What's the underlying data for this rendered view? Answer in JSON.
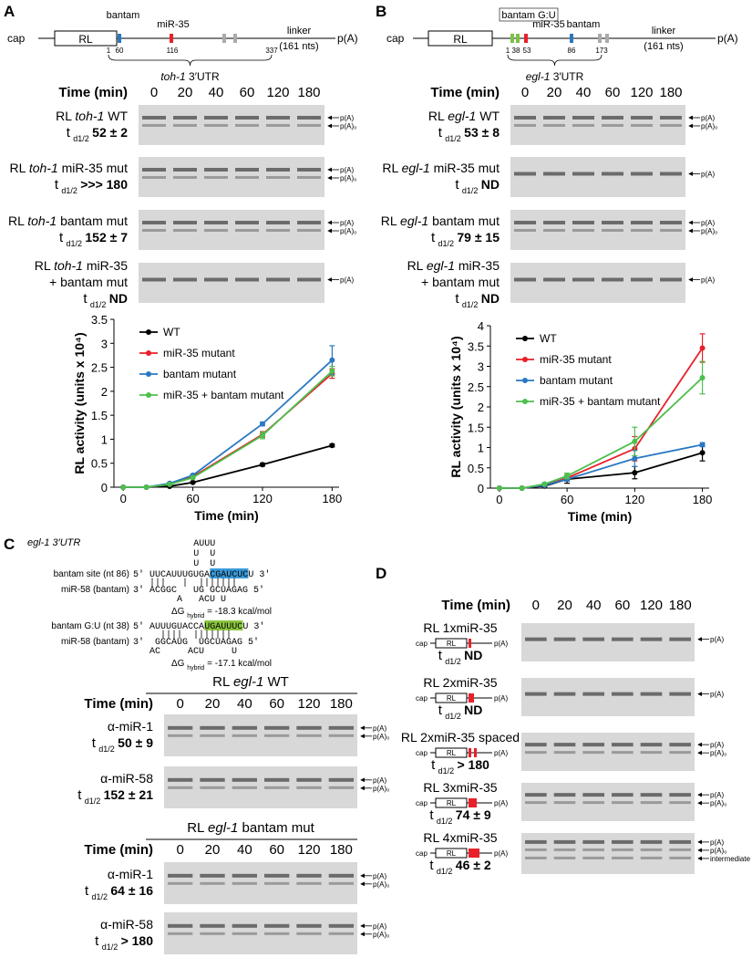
{
  "t_symbol": "t",
  "t_sub": "d1/2",
  "panels": [
    {
      "letter": "A",
      "construct": {
        "cap": "cap",
        "rl": "RL",
        "sites": [
          "bantam",
          "miR-35"
        ],
        "positions": [
          "1",
          "60",
          "116",
          "337"
        ],
        "utr": [
          "toh-1",
          "3′UTR"
        ],
        "linker": "linker",
        "linker_len": "(161 nts)",
        "polyA": "p(A)"
      },
      "time_label": "Time (min)",
      "times": [
        "0",
        "20",
        "40",
        "60",
        "120",
        "180"
      ],
      "rows": [
        {
          "label": [
            [
              "RL",
              "toh-1",
              "WT"
            ]
          ],
          "halflife": "52 ± 2",
          "arrows": [
            "p(A)",
            "p(A)₀"
          ]
        },
        {
          "label": [
            [
              "RL",
              "toh-1",
              "miR-35 mut"
            ]
          ],
          "halflife": ">>> 180",
          "arrows": [
            "p(A)",
            "p(A)₀"
          ]
        },
        {
          "label": [
            [
              "RL",
              "toh-1",
              "bantam mut"
            ]
          ],
          "halflife": "152 ± 7",
          "arrows": [
            "p(A)",
            "p(A)₀"
          ]
        },
        {
          "label": [
            [
              "RL",
              "toh-1",
              "miR-35"
            ],
            [
              "+ bantam mut"
            ]
          ],
          "halflife": "ND",
          "arrows": [
            "p(A)"
          ]
        }
      ]
    },
    {
      "letter": "B",
      "construct": {
        "cap": "cap",
        "rl": "RL",
        "sites": [
          "bantam G:U",
          "miR-35",
          "bantam"
        ],
        "positions": [
          "1",
          "38",
          "53",
          "86",
          "173"
        ],
        "utr": [
          "egl-1",
          "3′UTR"
        ],
        "linker": "linker",
        "linker_len": "(161 nts)",
        "polyA": "p(A)"
      },
      "time_label": "Time (min)",
      "times": [
        "0",
        "20",
        "40",
        "60",
        "120",
        "180"
      ],
      "rows": [
        {
          "label": [
            [
              "RL",
              "egl-1",
              "WT"
            ]
          ],
          "halflife": "53 ± 8",
          "arrows": [
            "p(A)",
            "p(A)₀"
          ]
        },
        {
          "label": [
            [
              "RL",
              "egl-1",
              "miR-35 mut"
            ]
          ],
          "halflife": "ND",
          "arrows": [
            "p(A)"
          ]
        },
        {
          "label": [
            [
              "RL",
              "egl-1",
              "bantam mut"
            ]
          ],
          "halflife": "79 ± 15",
          "arrows": [
            "p(A)",
            "p(A)₀"
          ]
        },
        {
          "label": [
            [
              "RL",
              "egl-1",
              "miR-35"
            ],
            [
              "+ bantam mut"
            ]
          ],
          "halflife": "ND",
          "arrows": [
            "p(A)"
          ]
        }
      ]
    },
    {
      "letter": "C",
      "utr": [
        "egl-1",
        "3′UTR"
      ],
      "sites": [
        {
          "loop": [
            "AUUU",
            "U  U",
            "U  U"
          ],
          "label": "bantam site (nt 86)",
          "target": [
            "5′ UUCAUUUGUGA",
            "CGAUCUC",
            "U 3′"
          ],
          "pairs": "   |||   |  |||||||",
          "mir_label": "miR-58 (bantam)",
          "mir": "3′ ACGGC   UG GCUAGAG 5′",
          "bulge": "        A   ACU U",
          "dg": [
            "ΔG",
            "hybrid",
            "= -18.3 kcal/mol"
          ]
        },
        {
          "loop": [],
          "label": "bantam G:U (nt 38)",
          "target": [
            "5′ AUUUGUACCA",
            "UGAUUUC",
            "U 3′"
          ],
          "pairs": "     ||||  |||||||",
          "mir_label": "miR-58 (bantam)",
          "mir": "3′  GGCAUG  UGCUAGAG 5′",
          "bulge": "   AC     ACU     U",
          "dg": [
            "ΔG",
            "hybrid",
            "= -17.1 kcal/mol"
          ]
        }
      ],
      "groups": [
        {
          "title": [
            "RL",
            "egl-1",
            "WT"
          ],
          "time_label": "Time (min)",
          "times": [
            "0",
            "20",
            "40",
            "60",
            "120",
            "180"
          ],
          "rows": [
            {
              "label": [
                [
                  "α-miR-1"
                ]
              ],
              "halflife": "50 ± 9",
              "arrows": [
                "p(A)",
                "p(A)₀"
              ]
            },
            {
              "label": [
                [
                  "α-miR-58"
                ]
              ],
              "halflife": "152 ± 21",
              "arrows": [
                "p(A)",
                "p(A)₀"
              ]
            }
          ]
        },
        {
          "title": [
            "RL",
            "egl-1",
            "bantam mut"
          ],
          "time_label": "Time (min)",
          "times": [
            "0",
            "20",
            "40",
            "60",
            "120",
            "180"
          ],
          "rows": [
            {
              "label": [
                [
                  "α-miR-1"
                ]
              ],
              "halflife": "64 ± 16",
              "arrows": [
                "p(A)",
                "p(A)₀"
              ]
            },
            {
              "label": [
                [
                  "α-miR-58"
                ]
              ],
              "halflife": "> 180",
              "arrows": [
                "p(A)",
                "p(A)₀"
              ]
            }
          ]
        }
      ]
    },
    {
      "letter": "D",
      "time_label": "Time (min)",
      "times": [
        "0",
        "20",
        "40",
        "60",
        "120",
        "180"
      ],
      "construct": {
        "cap": "cap",
        "rl": "RL",
        "polyA": "p(A)"
      },
      "rows": [
        {
          "label": [
            [
              "RL 1xmiR-35"
            ]
          ],
          "halflife": "ND",
          "arrows": [
            "p(A)"
          ]
        },
        {
          "label": [
            [
              "RL 2xmiR-35"
            ]
          ],
          "halflife": "ND",
          "arrows": [
            "p(A)"
          ]
        },
        {
          "label": [
            [
              "RL 2xmiR-35 spaced"
            ]
          ],
          "halflife": "> 180",
          "arrows": [
            "p(A)",
            "p(A)₀"
          ]
        },
        {
          "label": [
            [
              "RL 3xmiR-35"
            ]
          ],
          "halflife": "74 ± 9",
          "arrows": [
            "p(A)",
            "p(A)₀"
          ]
        },
        {
          "label": [
            [
              "RL 4xmiR-35"
            ]
          ],
          "halflife": "46 ± 2",
          "arrows": [
            "p(A)",
            "p(A)₀",
            "intermediate"
          ]
        }
      ]
    }
  ],
  "chart_data": [
    {
      "type": "line",
      "xlabel": "Time (min)",
      "ylabel": "RL activity (units x 10⁴)",
      "x": [
        0,
        20,
        40,
        60,
        120,
        180
      ],
      "xlim": [
        -8,
        186
      ],
      "xticks": [
        0,
        60,
        120,
        180
      ],
      "ylim": [
        0,
        3.5
      ],
      "yticks": [
        0,
        0.5,
        1,
        1.5,
        2,
        2.5,
        3,
        3.5
      ],
      "legend": "upper left",
      "series": [
        {
          "name": "WT",
          "color": "#000000",
          "values": [
            0,
            0,
            0.02,
            0.1,
            0.47,
            0.87
          ],
          "errors": [
            0,
            0,
            0,
            0.01,
            0.03,
            0.03
          ]
        },
        {
          "name": "miR-35 mutant",
          "color": "#e8202a",
          "values": [
            0,
            0,
            0.07,
            0.22,
            1.1,
            2.37
          ],
          "errors": [
            0,
            0,
            0.01,
            0.02,
            0.06,
            0.1
          ]
        },
        {
          "name": "bantam mutant",
          "color": "#2a78c2",
          "values": [
            0,
            0,
            0.08,
            0.25,
            1.32,
            2.65
          ],
          "errors": [
            0,
            0,
            0.01,
            0.02,
            0.04,
            0.3
          ]
        },
        {
          "name": "miR-35 + bantam mutant",
          "color": "#4dbf4d",
          "values": [
            0,
            0,
            0.06,
            0.2,
            1.08,
            2.42
          ],
          "errors": [
            0,
            0,
            0.01,
            0.02,
            0.07,
            0.1
          ]
        }
      ]
    },
    {
      "type": "line",
      "xlabel": "Time (min)",
      "ylabel": "RL activity (units x 10⁴)",
      "x": [
        0,
        20,
        40,
        60,
        120,
        180
      ],
      "xlim": [
        -8,
        186
      ],
      "xticks": [
        0,
        60,
        120,
        180
      ],
      "ylim": [
        0,
        4
      ],
      "yticks": [
        0,
        0.5,
        1,
        1.5,
        2,
        2.5,
        3,
        3.5,
        4
      ],
      "legend": "upper left",
      "series": [
        {
          "name": "WT",
          "color": "#000000",
          "values": [
            0,
            0,
            0.05,
            0.22,
            0.38,
            0.87
          ],
          "errors": [
            0,
            0,
            0.02,
            0.1,
            0.15,
            0.2
          ]
        },
        {
          "name": "miR-35 mutant",
          "color": "#e8202a",
          "values": [
            0,
            0,
            0.07,
            0.25,
            0.97,
            3.45
          ],
          "errors": [
            0,
            0,
            0.02,
            0.08,
            0.3,
            0.35
          ]
        },
        {
          "name": "bantam mutant",
          "color": "#2a78c2",
          "values": [
            0,
            0,
            0.07,
            0.22,
            0.73,
            1.07
          ],
          "errors": [
            0,
            0,
            0.02,
            0.05,
            0.2,
            0.05
          ]
        },
        {
          "name": "miR-35 + bantam mutant",
          "color": "#4dbf4d",
          "values": [
            0,
            0,
            0.1,
            0.3,
            1.15,
            2.72
          ],
          "errors": [
            0,
            0,
            0.02,
            0.07,
            0.35,
            0.4
          ]
        }
      ]
    }
  ]
}
